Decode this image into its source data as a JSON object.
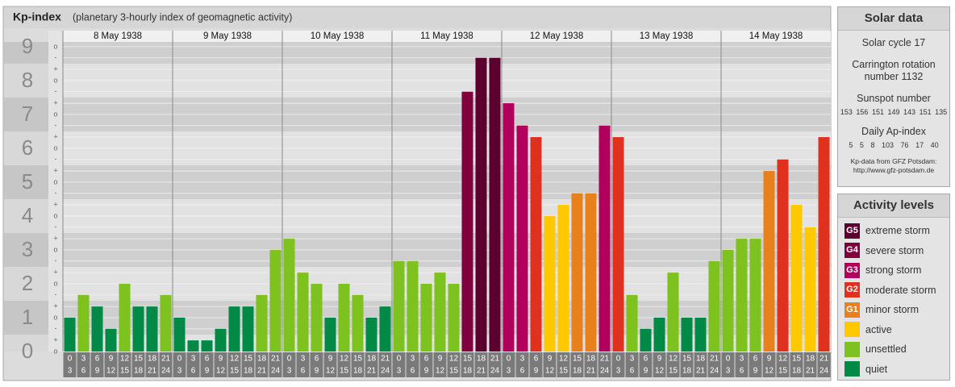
{
  "chart_data": {
    "type": "bar",
    "title": "Kp-index",
    "subtitle": "(planetary 3-hourly index of geomagnetic activity)",
    "days": [
      "8 May 1938",
      "9 May 1938",
      "10 May 1938",
      "11 May 1938",
      "12 May 1938",
      "13 May 1938",
      "14 May 1938"
    ],
    "time_slots": [
      [
        0,
        3
      ],
      [
        3,
        6
      ],
      [
        6,
        9
      ],
      [
        9,
        12
      ],
      [
        12,
        15
      ],
      [
        15,
        18
      ],
      [
        18,
        21
      ],
      [
        21,
        24
      ]
    ],
    "values": [
      1,
      1.67,
      1.33,
      0.67,
      2,
      1.33,
      1.33,
      1.67,
      1,
      0.33,
      0.33,
      0.67,
      1.33,
      1.33,
      1.67,
      3,
      3.33,
      2.33,
      2,
      1,
      2,
      1.67,
      1,
      1.33,
      2.67,
      2.67,
      2,
      2.33,
      2,
      7.67,
      8.67,
      8.67,
      7.33,
      6.67,
      6.33,
      4,
      4.33,
      4.67,
      4.67,
      6.67,
      6.33,
      1.67,
      0.67,
      1,
      2.33,
      1,
      1,
      2.67,
      3,
      3.33,
      3.33,
      5.33,
      5.67,
      4.33,
      3.67,
      6.33
    ],
    "colors": [
      "#008a45",
      "#7dc21e",
      "#008a45",
      "#008a45",
      "#7dc21e",
      "#008a45",
      "#008a45",
      "#7dc21e",
      "#008a45",
      "#008a45",
      "#008a45",
      "#008a45",
      "#008a45",
      "#008a45",
      "#7dc21e",
      "#7dc21e",
      "#7dc21e",
      "#7dc21e",
      "#7dc21e",
      "#008a45",
      "#7dc21e",
      "#7dc21e",
      "#008a45",
      "#008a45",
      "#7dc21e",
      "#7dc21e",
      "#7dc21e",
      "#7dc21e",
      "#7dc21e",
      "#80003e",
      "#5c0030",
      "#5c0030",
      "#b0005c",
      "#b0005c",
      "#e0301e",
      "#ffc800",
      "#ffc800",
      "#e8801c",
      "#e8801c",
      "#b0005c",
      "#e0301e",
      "#7dc21e",
      "#008a45",
      "#008a45",
      "#7dc21e",
      "#008a45",
      "#008a45",
      "#7dc21e",
      "#7dc21e",
      "#7dc21e",
      "#7dc21e",
      "#e8801c",
      "#e0301e",
      "#ffc800",
      "#ffc800",
      "#e0301e"
    ],
    "ylim": [
      0,
      9.14
    ],
    "yticks": [
      0,
      1,
      2,
      3,
      4,
      5,
      6,
      7,
      8,
      9
    ],
    "yminor": [
      {
        "value": 0,
        "label": "o"
      },
      {
        "value": 0.33,
        "label": "+"
      },
      {
        "value": 0.67,
        "label": "-"
      },
      {
        "value": 1,
        "label": "o"
      },
      {
        "value": 1.33,
        "label": "+"
      },
      {
        "value": 1.67,
        "label": "-"
      },
      {
        "value": 2,
        "label": "o"
      },
      {
        "value": 2.33,
        "label": "+"
      },
      {
        "value": 2.67,
        "label": "-"
      },
      {
        "value": 3,
        "label": "o"
      },
      {
        "value": 3.33,
        "label": "+"
      },
      {
        "value": 3.67,
        "label": "-"
      },
      {
        "value": 4,
        "label": "o"
      },
      {
        "value": 4.33,
        "label": "+"
      },
      {
        "value": 4.67,
        "label": "-"
      },
      {
        "value": 5,
        "label": "o"
      },
      {
        "value": 5.33,
        "label": "+"
      },
      {
        "value": 5.67,
        "label": "-"
      },
      {
        "value": 6,
        "label": "o"
      },
      {
        "value": 6.33,
        "label": "+"
      },
      {
        "value": 6.67,
        "label": "-"
      },
      {
        "value": 7,
        "label": "o"
      },
      {
        "value": 7.33,
        "label": "+"
      },
      {
        "value": 7.67,
        "label": "-"
      },
      {
        "value": 8,
        "label": "o"
      },
      {
        "value": 8.33,
        "label": "+"
      },
      {
        "value": 8.67,
        "label": "-"
      },
      {
        "value": 9,
        "label": "o"
      }
    ],
    "grid": true
  },
  "solar_data": {
    "title": "Solar data",
    "cycle": "Solar cycle 17",
    "carrington": "Carrington rotation number 1132",
    "sunspot_title": "Sunspot number",
    "sunspot": [
      153,
      156,
      151,
      149,
      143,
      151,
      135
    ],
    "ap_title": "Daily Ap-index",
    "ap": [
      5,
      5,
      8,
      103,
      76,
      17,
      40
    ],
    "source": "Kp-data from GFZ Potsdam:",
    "source_url": "http://www.gfz-potsdam.de"
  },
  "activity_levels": {
    "title": "Activity levels",
    "levels": [
      {
        "badge": "G5",
        "label": "extreme storm",
        "color": "#5c0030"
      },
      {
        "badge": "G4",
        "label": "severe storm",
        "color": "#80003e"
      },
      {
        "badge": "G3",
        "label": "strong storm",
        "color": "#b0005c"
      },
      {
        "badge": "G2",
        "label": "moderate storm",
        "color": "#e0301e"
      },
      {
        "badge": "G1",
        "label": "minor storm",
        "color": "#e8801c"
      },
      {
        "label": "active",
        "color": "#ffc800"
      },
      {
        "label": "unsettled",
        "color": "#7dc21e"
      },
      {
        "label": "quiet",
        "color": "#008a45"
      }
    ]
  }
}
